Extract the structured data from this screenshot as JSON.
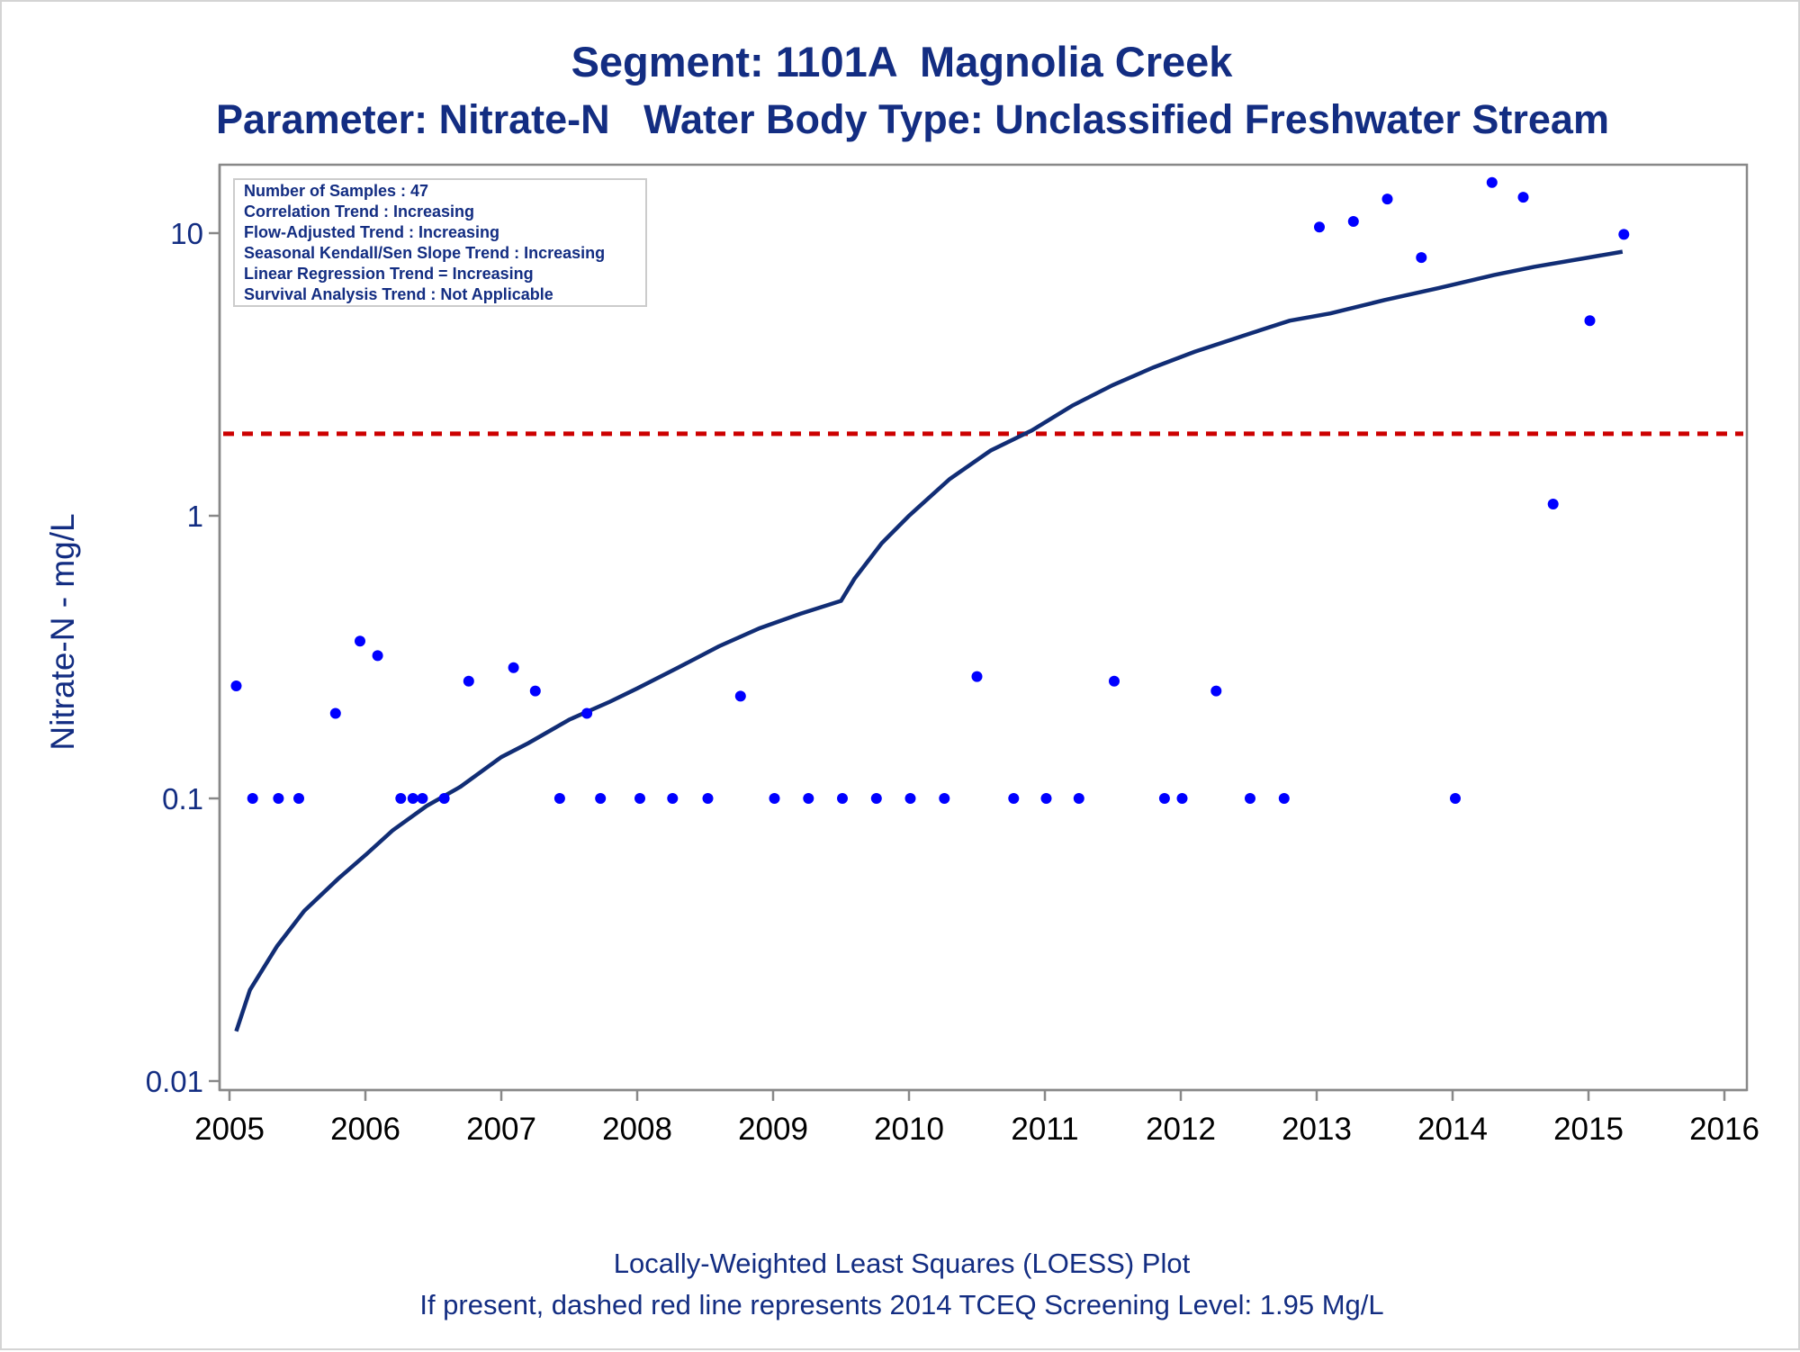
{
  "chart_data": {
    "type": "scatter",
    "title": "Segment: 1101A  Magnolia Creek",
    "subtitle": "Parameter: Nitrate-N   Water Body Type: Unclassified Freshwater Stream",
    "ylabel": "Nitrate-N - mg/L",
    "xlabel": "",
    "footnotes": [
      "Locally-Weighted Least Squares (LOESS) Plot",
      "If present, dashed red line represents 2014 TCEQ Screening Level: 1.95 Mg/L"
    ],
    "legend_placement": "top-left",
    "legend_box": [
      "Number of Samples : 47",
      "Correlation Trend : Increasing",
      "Flow-Adjusted Trend : Increasing",
      "Seasonal Kendall/Sen Slope Trend : Increasing",
      "Linear Regression Trend = Increasing",
      "Survival Analysis Trend : Not Applicable"
    ],
    "x_ticks": [
      "2005",
      "2006",
      "2007",
      "2008",
      "2009",
      "2010",
      "2011",
      "2012",
      "2013",
      "2014",
      "2015",
      "2016"
    ],
    "y_ticks": [
      "0.01",
      "0.1",
      "1",
      "10"
    ],
    "y_tick_values": [
      0.01,
      0.1,
      1,
      10
    ],
    "xlim": [
      2005,
      2016
    ],
    "ylim": [
      0.0085,
      17.5
    ],
    "y_scale": "log",
    "grid": false,
    "screening_level": 1.95,
    "colors": {
      "title": "#132d82",
      "points": "#0000ff",
      "loess": "#112d75",
      "screening_line": "#cc0000",
      "axis": "#888888"
    },
    "series": [
      {
        "type": "scatter",
        "points": [
          [
            2005.05,
            0.25
          ],
          [
            2005.17,
            0.1
          ],
          [
            2005.36,
            0.1
          ],
          [
            2005.51,
            0.1
          ],
          [
            2005.78,
            0.2
          ],
          [
            2005.96,
            0.36
          ],
          [
            2006.09,
            0.32
          ],
          [
            2006.26,
            0.1
          ],
          [
            2006.35,
            0.1
          ],
          [
            2006.42,
            0.1
          ],
          [
            2006.58,
            0.1
          ],
          [
            2006.76,
            0.26
          ],
          [
            2007.09,
            0.29
          ],
          [
            2007.25,
            0.24
          ],
          [
            2007.43,
            0.1
          ],
          [
            2007.63,
            0.2
          ],
          [
            2007.73,
            0.1
          ],
          [
            2008.02,
            0.1
          ],
          [
            2008.26,
            0.1
          ],
          [
            2008.52,
            0.1
          ],
          [
            2008.76,
            0.23
          ],
          [
            2009.01,
            0.1
          ],
          [
            2009.26,
            0.1
          ],
          [
            2009.51,
            0.1
          ],
          [
            2009.76,
            0.1
          ],
          [
            2010.01,
            0.1
          ],
          [
            2010.26,
            0.1
          ],
          [
            2010.5,
            0.27
          ],
          [
            2010.77,
            0.1
          ],
          [
            2011.01,
            0.1
          ],
          [
            2011.25,
            0.1
          ],
          [
            2011.51,
            0.26
          ],
          [
            2011.88,
            0.1
          ],
          [
            2012.01,
            0.1
          ],
          [
            2012.26,
            0.24
          ],
          [
            2012.51,
            0.1
          ],
          [
            2012.76,
            0.1
          ],
          [
            2013.02,
            10.5
          ],
          [
            2013.27,
            11.0
          ],
          [
            2013.52,
            13.2
          ],
          [
            2013.77,
            8.2
          ],
          [
            2014.02,
            0.1
          ],
          [
            2014.29,
            15.1
          ],
          [
            2014.52,
            13.4
          ],
          [
            2014.74,
            1.1
          ],
          [
            2015.01,
            4.9
          ],
          [
            2015.26,
            9.9
          ]
        ]
      },
      {
        "type": "line",
        "points": [
          [
            2005.05,
            0.015
          ],
          [
            2005.15,
            0.021
          ],
          [
            2005.35,
            0.03
          ],
          [
            2005.55,
            0.04
          ],
          [
            2005.8,
            0.052
          ],
          [
            2006.0,
            0.063
          ],
          [
            2006.2,
            0.077
          ],
          [
            2006.45,
            0.094
          ],
          [
            2006.7,
            0.11
          ],
          [
            2007.0,
            0.14
          ],
          [
            2007.2,
            0.157
          ],
          [
            2007.5,
            0.19
          ],
          [
            2007.8,
            0.22
          ],
          [
            2008.0,
            0.245
          ],
          [
            2008.3,
            0.29
          ],
          [
            2008.6,
            0.345
          ],
          [
            2008.9,
            0.4
          ],
          [
            2009.2,
            0.45
          ],
          [
            2009.5,
            0.5
          ],
          [
            2009.6,
            0.6
          ],
          [
            2009.8,
            0.8
          ],
          [
            2010.0,
            1.0
          ],
          [
            2010.3,
            1.35
          ],
          [
            2010.6,
            1.7
          ],
          [
            2010.9,
            2.0
          ],
          [
            2011.2,
            2.45
          ],
          [
            2011.5,
            2.9
          ],
          [
            2011.8,
            3.35
          ],
          [
            2012.1,
            3.8
          ],
          [
            2012.5,
            4.4
          ],
          [
            2012.8,
            4.9
          ],
          [
            2013.1,
            5.2
          ],
          [
            2013.5,
            5.8
          ],
          [
            2013.9,
            6.4
          ],
          [
            2014.3,
            7.1
          ],
          [
            2014.6,
            7.6
          ],
          [
            2015.0,
            8.2
          ],
          [
            2015.25,
            8.6
          ]
        ]
      }
    ]
  }
}
